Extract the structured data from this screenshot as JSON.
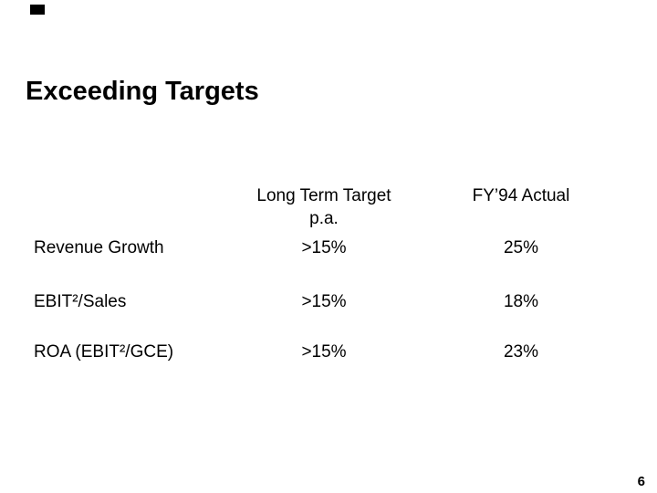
{
  "slide": {
    "title": "Exceeding Targets",
    "page_number": "6",
    "background_color": "#ffffff",
    "text_color": "#000000"
  },
  "table": {
    "header": {
      "target_line1": "Long Term Target",
      "target_line2": "p.a.",
      "actual": "FY’94 Actual"
    },
    "rows": [
      {
        "label": "Revenue Growth",
        "target": ">15%",
        "actual": "25%"
      },
      {
        "label": "EBIT²/Sales",
        "target": ">15%",
        "actual": "18%"
      },
      {
        "label": "ROA (EBIT²/GCE)",
        "target": ">15%",
        "actual": "23%"
      }
    ]
  }
}
